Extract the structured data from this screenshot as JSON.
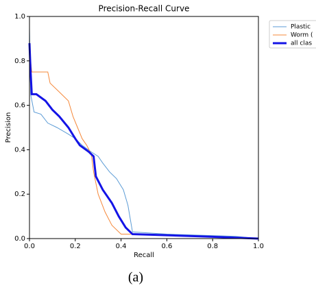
{
  "chart_data": {
    "type": "line",
    "title": "Precision-Recall Curve",
    "x_label": "Recall",
    "y_label": "Precision",
    "xlim": [
      0,
      1
    ],
    "ylim": [
      0,
      1
    ],
    "xticks": [
      {
        "value": 0,
        "label": "0.0"
      },
      0.2,
      0.4,
      0.6,
      0.8,
      {
        "value": 1,
        "label": "1.0"
      }
    ],
    "yticks": [
      {
        "value": 0,
        "label": "0.0"
      },
      0.2,
      0.4,
      0.6,
      0.8,
      {
        "value": 1,
        "label": "1.0"
      }
    ],
    "grid": false,
    "legend": "outside upper right",
    "series": [
      {
        "name": "Plastic",
        "color": "#5b9bd5",
        "width": 1,
        "x": [
          0,
          0.005,
          0.02,
          0.05,
          0.08,
          0.12,
          0.17,
          0.2,
          0.23,
          0.27,
          0.3,
          0.32,
          0.35,
          0.38,
          0.41,
          0.43,
          0.45,
          0.6,
          0.9,
          1.0
        ],
        "values": [
          0.95,
          0.65,
          0.57,
          0.56,
          0.52,
          0.5,
          0.47,
          0.45,
          0.42,
          0.39,
          0.37,
          0.34,
          0.3,
          0.27,
          0.22,
          0.15,
          0.03,
          0.02,
          0.01,
          0
        ]
      },
      {
        "name": "Worm (",
        "color": "#f5883a",
        "width": 1,
        "x": [
          0,
          0.01,
          0.08,
          0.09,
          0.12,
          0.17,
          0.19,
          0.21,
          0.23,
          0.25,
          0.27,
          0.28,
          0.3,
          0.33,
          0.36,
          0.4,
          0.45,
          0.6,
          0.9,
          1.0
        ],
        "values": [
          0.85,
          0.75,
          0.75,
          0.7,
          0.67,
          0.62,
          0.55,
          0.5,
          0.45,
          0.42,
          0.38,
          0.3,
          0.2,
          0.12,
          0.06,
          0.02,
          0.02,
          0.015,
          0.005,
          0
        ]
      },
      {
        "name": "all clas",
        "color": "#1414e6",
        "width": 3,
        "x": [
          0,
          0.005,
          0.01,
          0.03,
          0.07,
          0.1,
          0.13,
          0.17,
          0.2,
          0.22,
          0.26,
          0.28,
          0.29,
          0.32,
          0.36,
          0.39,
          0.42,
          0.45,
          0.6,
          0.8,
          1.0
        ],
        "values": [
          0.88,
          0.75,
          0.65,
          0.65,
          0.62,
          0.58,
          0.55,
          0.5,
          0.45,
          0.42,
          0.39,
          0.37,
          0.28,
          0.22,
          0.16,
          0.1,
          0.05,
          0.02,
          0.015,
          0.008,
          0
        ]
      }
    ]
  },
  "caption": "(a)"
}
